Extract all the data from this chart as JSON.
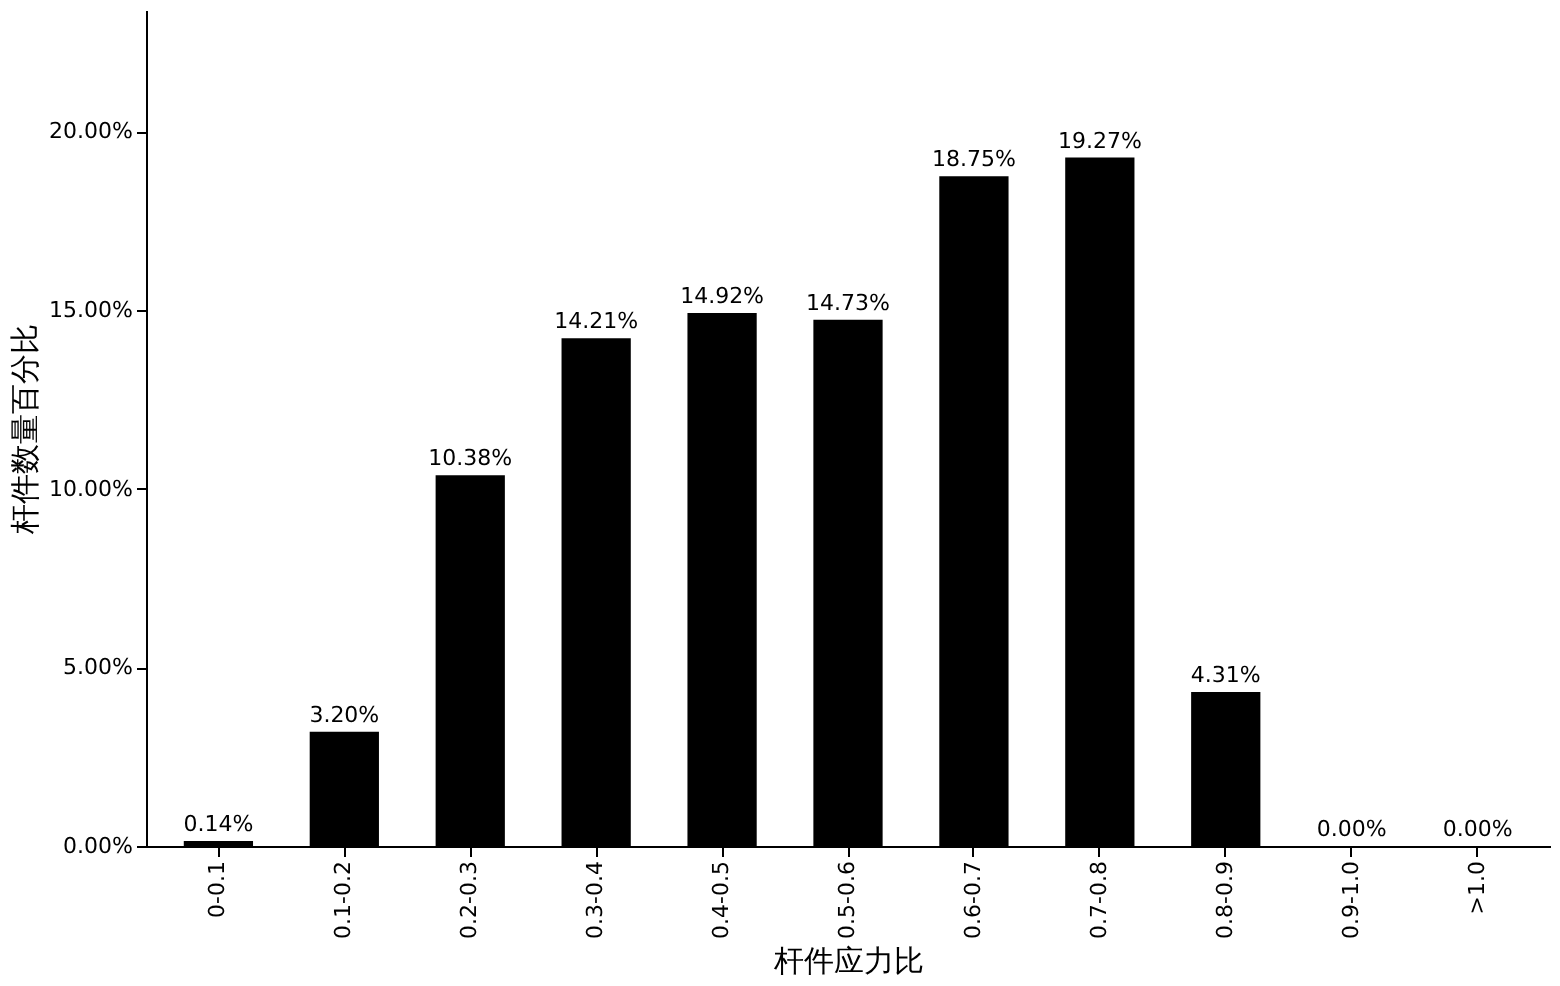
{
  "chart_data": {
    "type": "bar",
    "xlabel": "杆件应力比",
    "ylabel": "杆件数量百分比",
    "categories": [
      "0-0.1",
      "0.1-0.2",
      "0.2-0.3",
      "0.3-0.4",
      "0.4-0.5",
      "0.5-0.6",
      "0.6-0.7",
      "0.7-0.8",
      "0.8-0.9",
      "0.9-1.0",
      ">1.0"
    ],
    "values": [
      0.14,
      3.2,
      10.38,
      14.21,
      14.92,
      14.73,
      18.75,
      19.27,
      4.31,
      0.0,
      0.0
    ],
    "value_labels": [
      "0.14%",
      "3.20%",
      "10.38%",
      "14.21%",
      "14.92%",
      "14.73%",
      "18.75%",
      "19.27%",
      "4.31%",
      "0.00%",
      "0.00%"
    ],
    "color": "#000000",
    "ylim": [
      0,
      23.4
    ],
    "yticks": [
      {
        "value": 0,
        "label": "0.00%"
      },
      {
        "value": 5,
        "label": "5.00%"
      },
      {
        "value": 10,
        "label": "10.00%"
      },
      {
        "value": 15,
        "label": "15.00%"
      },
      {
        "value": 20,
        "label": "20.00%"
      }
    ],
    "grid": false
  }
}
